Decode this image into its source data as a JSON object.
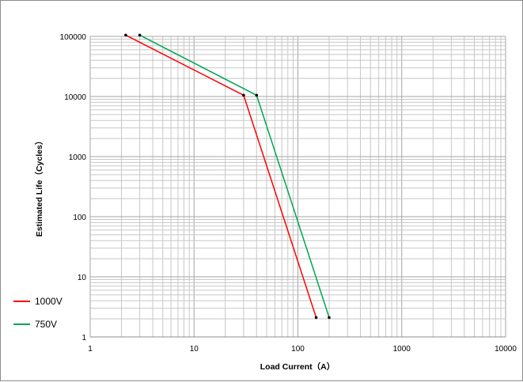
{
  "chart_data": {
    "type": "line",
    "xscale": "log",
    "yscale": "log",
    "xlim": [
      1,
      10000
    ],
    "ylim": [
      1,
      100000
    ],
    "xlabel": "Load Current（A）",
    "ylabel": "Estimated Life（Cycles）",
    "x_ticks": [
      "1",
      "10",
      "100",
      "1000",
      "10000"
    ],
    "y_ticks": [
      "1",
      "10",
      "100",
      "1000",
      "10000",
      "100000"
    ],
    "grid": true,
    "legend": "bottom-left",
    "series": [
      {
        "name": "1000V",
        "color": "#ff0000",
        "x": [
          2.2,
          30,
          150
        ],
        "y": [
          105000,
          10500,
          2.1
        ]
      },
      {
        "name": "750V",
        "color": "#00a650",
        "x": [
          3,
          40,
          200
        ],
        "y": [
          105000,
          10500,
          2.1
        ]
      }
    ]
  }
}
